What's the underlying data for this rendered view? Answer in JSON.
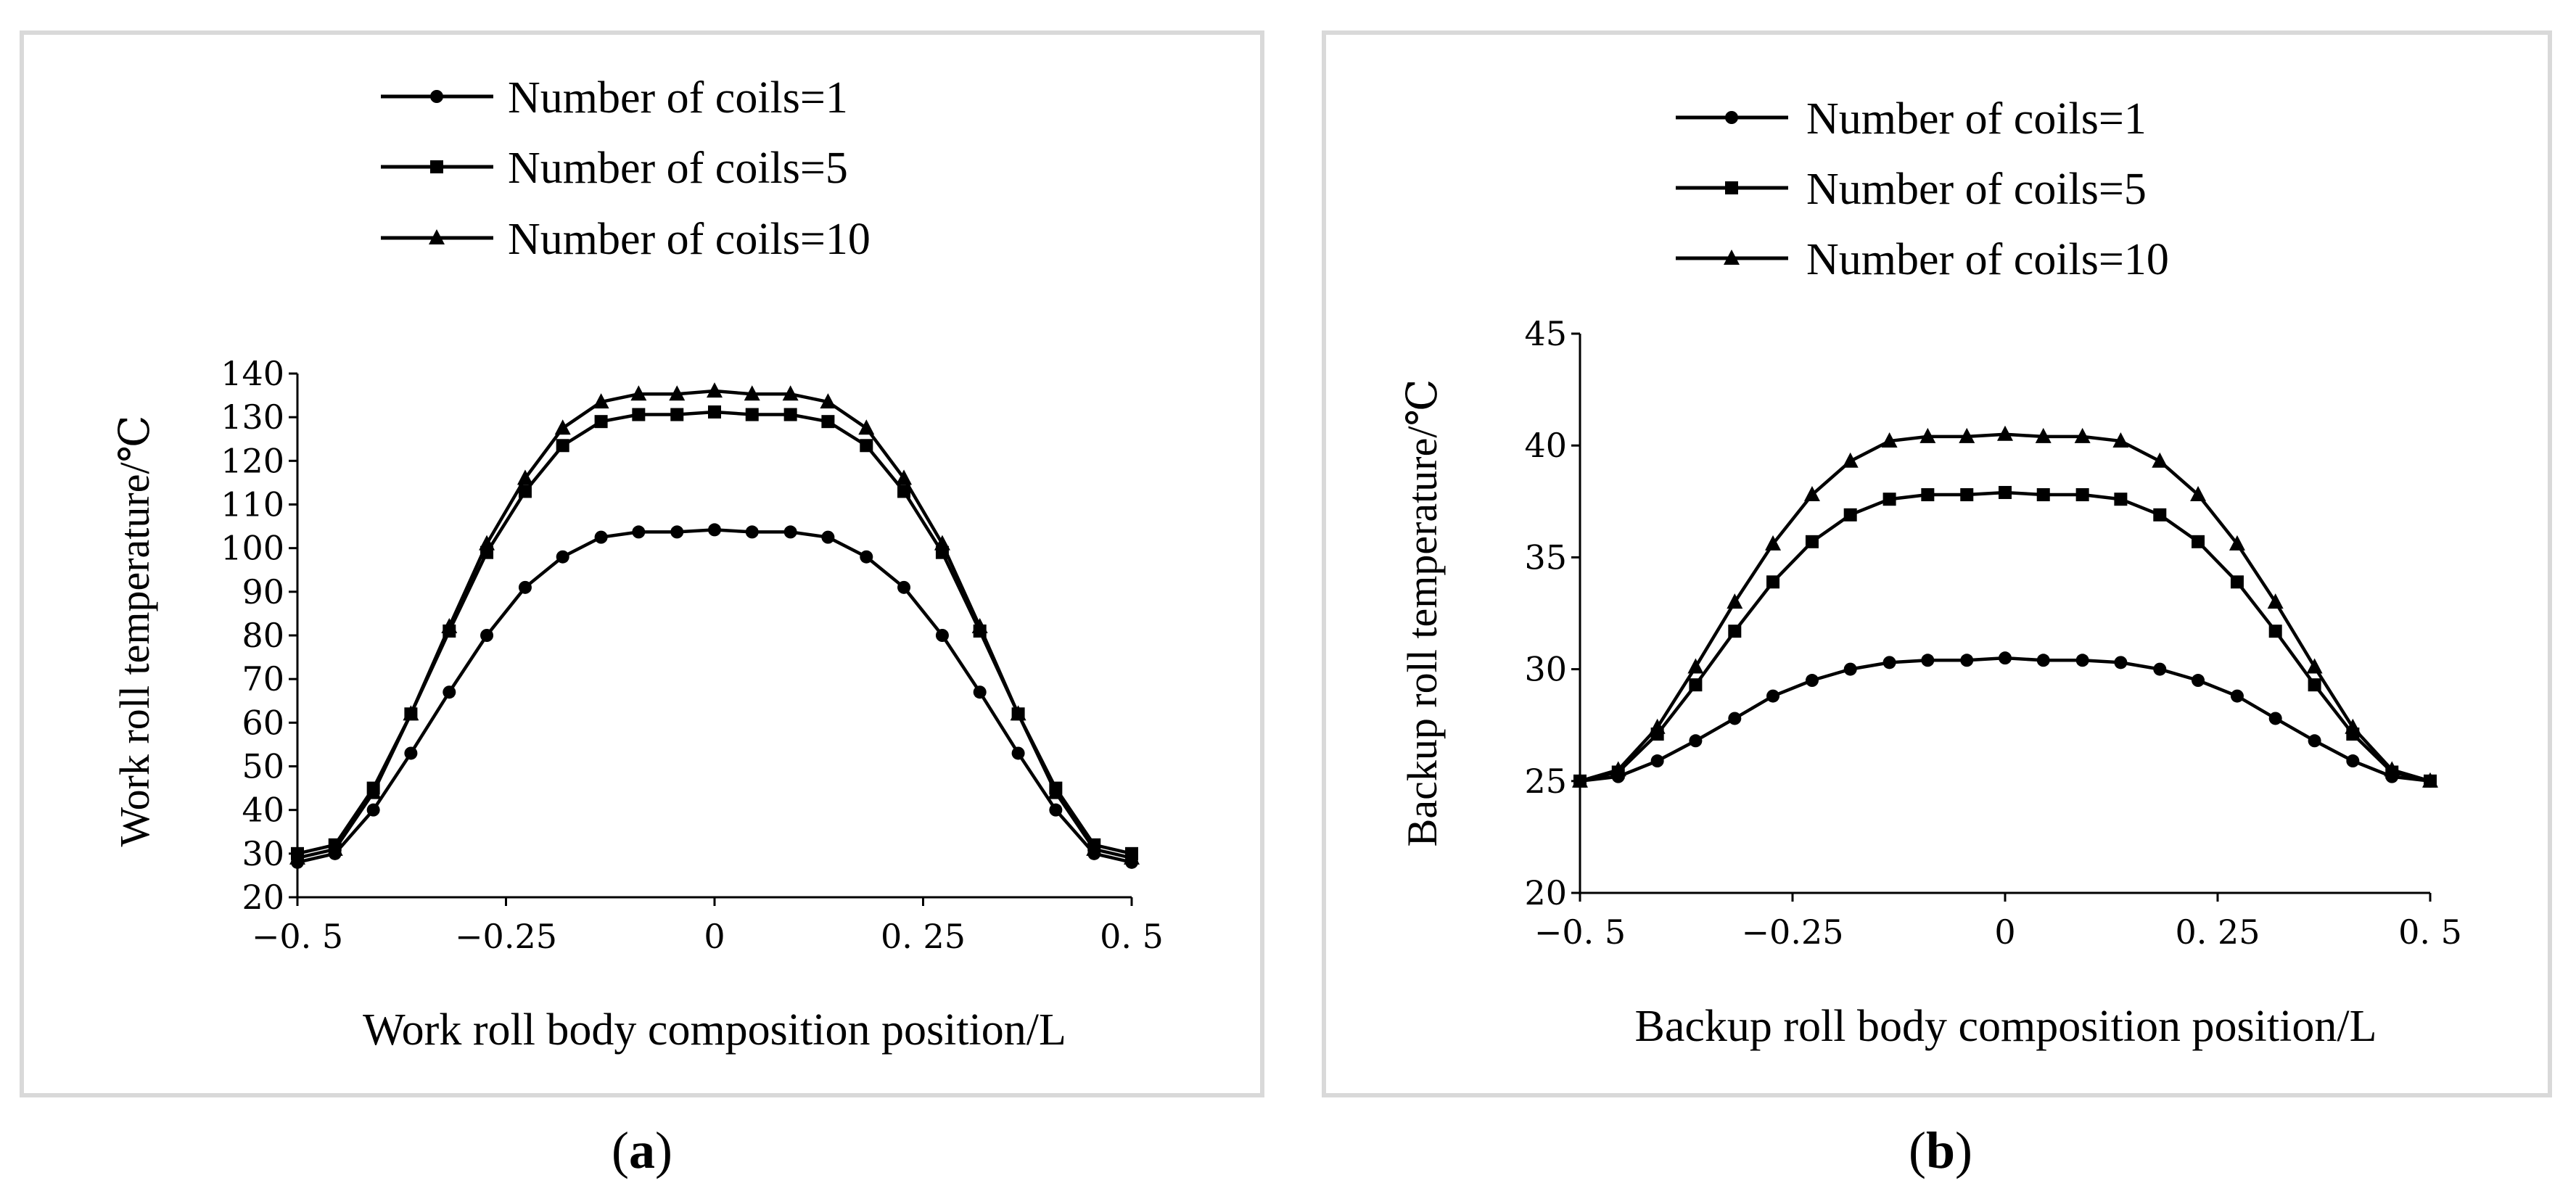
{
  "figure": {
    "caption_a_letter": "a",
    "caption_b_letter": "b"
  },
  "chart_data": [
    {
      "id": "a",
      "type": "line",
      "xlabel": "Work roll body composition position/L",
      "ylabel": "Work roll temperature/℃",
      "xlim": [
        -0.5,
        0.5
      ],
      "ylim": [
        20,
        140
      ],
      "xticks": [
        -0.5,
        -0.25,
        0,
        0.25,
        0.5
      ],
      "xtick_labels": [
        "−0. 5",
        "−0.25",
        "0",
        "0. 25",
        "0. 5"
      ],
      "yticks": [
        20,
        30,
        40,
        50,
        60,
        70,
        80,
        90,
        100,
        110,
        120,
        130,
        140
      ],
      "ytick_labels": [
        "20",
        "30",
        "40",
        "50",
        "60",
        "70",
        "80",
        "90",
        "100",
        "110",
        "120",
        "130",
        "140"
      ],
      "legend_position": "top",
      "x": [
        -0.5,
        -0.455,
        -0.409,
        -0.364,
        -0.318,
        -0.273,
        -0.227,
        -0.182,
        -0.136,
        -0.091,
        -0.045,
        0,
        0.045,
        0.091,
        0.136,
        0.182,
        0.227,
        0.273,
        0.318,
        0.364,
        0.409,
        0.455,
        0.5
      ],
      "series": [
        {
          "name": "Number of coils=1",
          "marker": "circle",
          "values": [
            28,
            30,
            40,
            53,
            67,
            80,
            91,
            98,
            102.5,
            103.7,
            103.7,
            104.2,
            103.7,
            103.7,
            102.5,
            98,
            91,
            80,
            67,
            53,
            40,
            30,
            28
          ]
        },
        {
          "name": "Number of coils=5",
          "marker": "square",
          "values": [
            30,
            32,
            45,
            62,
            81,
            99,
            113,
            123.5,
            129,
            130.6,
            130.6,
            131.2,
            130.6,
            130.6,
            129,
            123.5,
            113,
            99,
            81,
            62,
            45,
            32,
            30
          ]
        },
        {
          "name": "Number of coils=10",
          "marker": "triangle",
          "values": [
            29,
            31,
            44,
            62,
            82,
            101,
            116,
            127.5,
            133.5,
            135.3,
            135.3,
            136,
            135.3,
            135.3,
            133.5,
            127.5,
            116,
            101,
            82,
            62,
            44,
            31,
            29
          ]
        }
      ]
    },
    {
      "id": "b",
      "type": "line",
      "xlabel": "Backup roll body composition position/L",
      "ylabel": "Backup roll temperature/℃",
      "xlim": [
        -0.5,
        0.5
      ],
      "ylim": [
        20,
        45
      ],
      "xticks": [
        -0.5,
        -0.25,
        0,
        0.25,
        0.5
      ],
      "xtick_labels": [
        "−0. 5",
        "−0.25",
        "0",
        "0. 25",
        "0. 5"
      ],
      "yticks": [
        20,
        25,
        30,
        35,
        40,
        45
      ],
      "ytick_labels": [
        "20",
        "25",
        "30",
        "35",
        "40",
        "45"
      ],
      "legend_position": "top",
      "x": [
        -0.5,
        -0.455,
        -0.409,
        -0.364,
        -0.318,
        -0.273,
        -0.227,
        -0.182,
        -0.136,
        -0.091,
        -0.045,
        0,
        0.045,
        0.091,
        0.136,
        0.182,
        0.227,
        0.273,
        0.318,
        0.364,
        0.409,
        0.455,
        0.5
      ],
      "series": [
        {
          "name": "Number of coils=1",
          "marker": "circle",
          "values": [
            25,
            25.2,
            25.9,
            26.8,
            27.8,
            28.8,
            29.5,
            30.0,
            30.3,
            30.4,
            30.4,
            30.5,
            30.4,
            30.4,
            30.3,
            30.0,
            29.5,
            28.8,
            27.8,
            26.8,
            25.9,
            25.2,
            25
          ]
        },
        {
          "name": "Number of coils=5",
          "marker": "square",
          "values": [
            25,
            25.4,
            27.1,
            29.3,
            31.7,
            33.9,
            35.7,
            36.9,
            37.6,
            37.8,
            37.8,
            37.9,
            37.8,
            37.8,
            37.6,
            36.9,
            35.7,
            33.9,
            31.7,
            29.3,
            27.1,
            25.4,
            25
          ]
        },
        {
          "name": "Number of coils=10",
          "marker": "triangle",
          "values": [
            25,
            25.5,
            27.4,
            30.1,
            33.0,
            35.6,
            37.8,
            39.3,
            40.2,
            40.4,
            40.4,
            40.5,
            40.4,
            40.4,
            40.2,
            39.3,
            37.8,
            35.6,
            33.0,
            30.1,
            27.4,
            25.5,
            25
          ]
        }
      ]
    }
  ]
}
